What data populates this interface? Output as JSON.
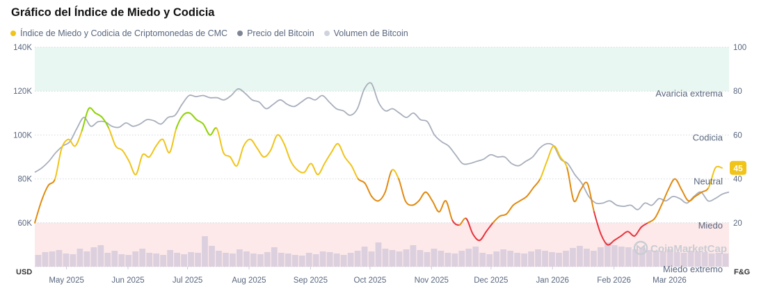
{
  "title": "Gráfico del Índice de Miedo y Codicia",
  "legend": [
    {
      "label": "Índice de Miedo y Codicia de Criptomonedas de CMC",
      "color": "#f0c419"
    },
    {
      "label": "Precio del Bitcoin",
      "color": "#7d8494"
    },
    {
      "label": "Volumen de Bitcoin",
      "color": "#cfd3dc"
    }
  ],
  "watermark": "CoinMarketCap",
  "chart_data": {
    "type": "line",
    "x_range": [
      "2025-04-15",
      "2026-03-31"
    ],
    "x_ticks": [
      "May 2025",
      "Jun 2025",
      "Jul 2025",
      "Aug 2025",
      "Sep 2025",
      "Oct 2025",
      "Nov 2025",
      "Dec 2025",
      "Jan 2026",
      "Feb 2026",
      "Mar 2026"
    ],
    "left_axis": {
      "unit": "USD",
      "ticks": [
        "60K",
        "80K",
        "100K",
        "120K",
        "140K"
      ],
      "range": [
        40000,
        140000
      ]
    },
    "right_axis": {
      "unit": "F&G",
      "ticks": [
        "20",
        "40",
        "60",
        "80",
        "100"
      ],
      "range": [
        0,
        100
      ]
    },
    "zones": [
      {
        "label": "Avaricia extrema",
        "from": 80,
        "to": 100,
        "color": "#e8f7f1"
      },
      {
        "label": "Codicia",
        "from": 60,
        "to": 80
      },
      {
        "label": "Neutral",
        "from": 40,
        "to": 60
      },
      {
        "label": "Miedo",
        "from": 20,
        "to": 40
      },
      {
        "label": "Miedo extremo",
        "from": 0,
        "to": 20,
        "color": "#fde9ea"
      }
    ],
    "current_value": "45",
    "series": [
      {
        "name": "Índice de Miedo y Codicia de Criptomonedas de CMC",
        "axis": "right",
        "color_scale": [
          {
            "max": 20,
            "color": "#e8323c"
          },
          {
            "max": 40,
            "color": "#e08a10"
          },
          {
            "max": 60,
            "color": "#f0c419"
          },
          {
            "max": 100,
            "color": "#8fd100"
          }
        ],
        "values": [
          20,
          30,
          37,
          40,
          54,
          58,
          55,
          62,
          72,
          70,
          68,
          63,
          55,
          53,
          48,
          42,
          51,
          50,
          55,
          58,
          52,
          63,
          69,
          70,
          67,
          65,
          60,
          63,
          52,
          50,
          46,
          55,
          58,
          54,
          50,
          53,
          60,
          56,
          48,
          44,
          43,
          47,
          42,
          47,
          52,
          56,
          50,
          46,
          40,
          38,
          32,
          30,
          34,
          44,
          40,
          30,
          28,
          30,
          34,
          30,
          25,
          30,
          21,
          19,
          22,
          15,
          12,
          16,
          20,
          23,
          24,
          28,
          30,
          32,
          36,
          40,
          48,
          55,
          50,
          45,
          30,
          35,
          38,
          25,
          15,
          10,
          12,
          14,
          16,
          14,
          18,
          20,
          22,
          28,
          35,
          40,
          35,
          30,
          32,
          34,
          36,
          45,
          45
        ]
      },
      {
        "name": "Precio del Bitcoin",
        "axis": "left",
        "color": "#a7aebb",
        "values": [
          83000,
          85000,
          88000,
          92000,
          95000,
          97000,
          103000,
          108000,
          104000,
          106000,
          106000,
          104000,
          103500,
          105500,
          104000,
          105000,
          107000,
          106500,
          105000,
          108000,
          109000,
          114000,
          118000,
          117500,
          118000,
          117000,
          117000,
          116000,
          118000,
          121000,
          119000,
          116000,
          115000,
          112000,
          114000,
          116000,
          114000,
          113000,
          115000,
          117000,
          116000,
          118000,
          115000,
          112000,
          111000,
          109000,
          112000,
          121000,
          123500,
          115000,
          111000,
          112000,
          110000,
          108000,
          110000,
          107000,
          106000,
          100000,
          97000,
          95000,
          91000,
          87000,
          87000,
          88000,
          89000,
          91000,
          90000,
          90000,
          87000,
          86000,
          88000,
          90000,
          94000,
          96000,
          95000,
          89000,
          87000,
          82000,
          78000,
          72000,
          69000,
          69000,
          70000,
          68000,
          67500,
          68000,
          66000,
          69000,
          68000,
          71000,
          70000,
          72000,
          71000,
          69000,
          72000,
          74000,
          70000,
          71000,
          73000,
          74000
        ]
      }
    ],
    "volume_axis": "unitless",
    "volume_values": [
      34,
      42,
      44,
      48,
      38,
      36,
      52,
      44,
      56,
      62,
      40,
      46,
      36,
      34,
      44,
      52,
      40,
      38,
      34,
      48,
      40,
      36,
      42,
      40,
      88,
      60,
      46,
      40,
      38,
      50,
      44,
      38,
      36,
      42,
      56,
      40,
      38,
      34,
      32,
      40,
      36,
      44,
      42,
      38,
      34,
      40,
      46,
      58,
      44,
      70,
      52,
      48,
      44,
      50,
      62,
      48,
      42,
      52,
      46,
      40,
      38,
      46,
      52,
      58,
      40,
      36,
      44,
      50,
      46,
      40,
      38,
      44,
      50,
      46,
      42,
      40,
      46,
      54,
      60,
      52,
      46,
      56,
      70,
      62,
      58,
      56,
      50,
      54,
      48,
      46,
      44,
      50,
      42,
      40,
      46,
      44,
      42,
      38,
      40,
      38
    ]
  }
}
